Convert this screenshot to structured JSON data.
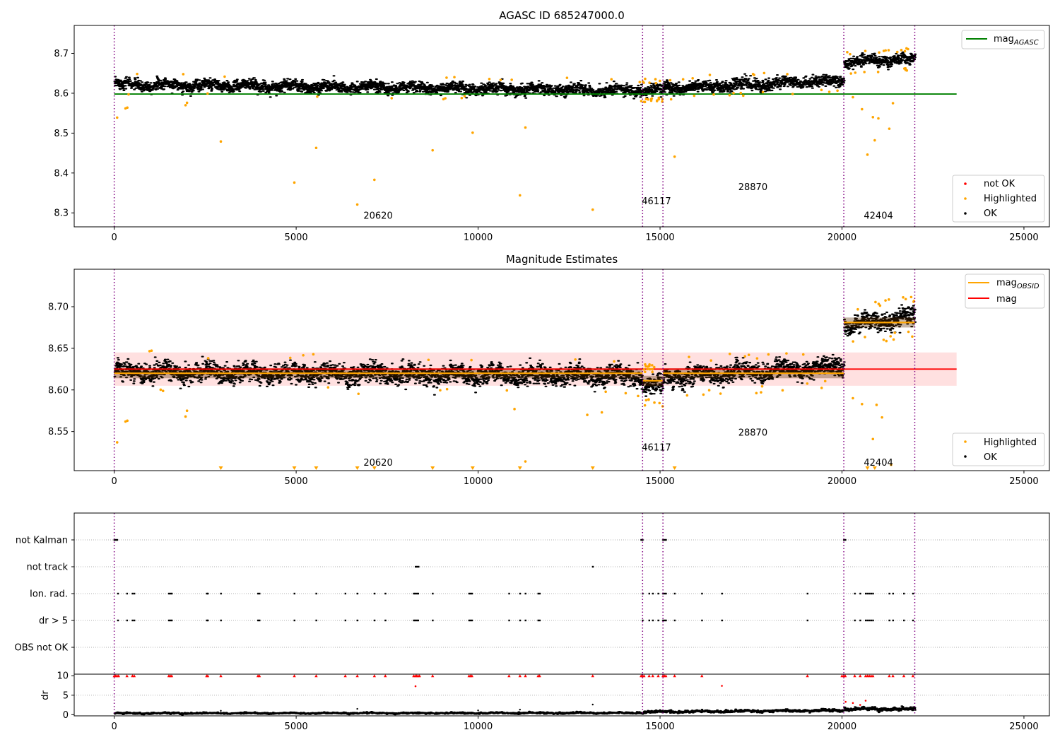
{
  "chart_data": [
    {
      "type": "scatter",
      "title": "AGASC ID 685247000.0",
      "xlim": [
        -1100,
        25700
      ],
      "ylim": [
        8.265,
        8.77
      ],
      "xticks": [
        0,
        5000,
        10000,
        15000,
        20000,
        25000
      ],
      "yticks": [
        8.3,
        8.4,
        8.5,
        8.6,
        8.7
      ],
      "ytick_labels": [
        "8.3",
        "8.4",
        "8.5",
        "8.6",
        "8.7"
      ],
      "obsid_boundaries": [
        0,
        14520,
        15080,
        20050,
        22000
      ],
      "obsid_labels": [
        {
          "text": "20620",
          "x": 6850,
          "y": 8.285
        },
        {
          "text": "46117",
          "x": 14500,
          "y": 8.322
        },
        {
          "text": "28870",
          "x": 17150,
          "y": 8.357
        },
        {
          "text": "42404",
          "x": 20600,
          "y": 8.285
        }
      ],
      "reference_line": {
        "name": "mag",
        "subscript": "AGASC",
        "value": 8.598,
        "x_range": [
          0,
          23150
        ],
        "color": "#008000"
      },
      "segments": [
        {
          "x": [
            0,
            14520
          ],
          "mean_start": 8.622,
          "mean_end": 8.607,
          "spread": 0.012
        },
        {
          "x": [
            14520,
            15080
          ],
          "mean_start": 8.607,
          "mean_end": 8.607,
          "spread": 0.012
        },
        {
          "x": [
            15080,
            20050
          ],
          "mean_start": 8.612,
          "mean_end": 8.632,
          "spread": 0.012
        },
        {
          "x": [
            20050,
            22000
          ],
          "mean_start": 8.678,
          "mean_end": 8.687,
          "spread": 0.012
        }
      ],
      "highlighted_points": [
        [
          80,
          8.539
        ],
        [
          310,
          8.562
        ],
        [
          360,
          8.564
        ],
        [
          1960,
          8.57
        ],
        [
          2000,
          8.576
        ],
        [
          2930,
          8.479
        ],
        [
          4950,
          8.376
        ],
        [
          5550,
          8.463
        ],
        [
          6680,
          8.321
        ],
        [
          7150,
          8.383
        ],
        [
          8750,
          8.457
        ],
        [
          9850,
          8.501
        ],
        [
          11150,
          8.344
        ],
        [
          11300,
          8.514
        ],
        [
          13150,
          8.308
        ],
        [
          15400,
          8.441
        ],
        [
          20300,
          8.59
        ],
        [
          20550,
          8.56
        ],
        [
          20700,
          8.446
        ],
        [
          20850,
          8.54
        ],
        [
          20900,
          8.482
        ],
        [
          21000,
          8.537
        ],
        [
          21300,
          8.511
        ],
        [
          21400,
          8.575
        ]
      ],
      "legends": [
        {
          "position": "upper-right",
          "entries": [
            {
              "label": "mag",
              "subscript": "AGASC",
              "marker": "line",
              "color": "#008000"
            }
          ]
        },
        {
          "position": "lower-right",
          "entries": [
            {
              "label": "not OK",
              "marker": "dot",
              "color": "#ff0000"
            },
            {
              "label": "Highlighted",
              "marker": "dot",
              "color": "#ffa500"
            },
            {
              "label": "OK",
              "marker": "dot",
              "color": "#000000"
            }
          ]
        }
      ]
    },
    {
      "type": "scatter",
      "title": "Magnitude Estimates",
      "xlim": [
        -1100,
        25700
      ],
      "ylim": [
        8.503,
        8.745
      ],
      "xticks": [
        0,
        5000,
        10000,
        15000,
        20000,
        25000
      ],
      "yticks": [
        8.55,
        8.6,
        8.65,
        8.7
      ],
      "ytick_labels": [
        "8.55",
        "8.60",
        "8.65",
        "8.70"
      ],
      "obsid_boundaries": [
        0,
        14520,
        15080,
        20050,
        22000
      ],
      "obsid_labels": [
        {
          "text": "20620",
          "x": 6850,
          "y": 8.509
        },
        {
          "text": "46117",
          "x": 14500,
          "y": 8.527
        },
        {
          "text": "28870",
          "x": 17150,
          "y": 8.545
        },
        {
          "text": "42404",
          "x": 20600,
          "y": 8.509
        }
      ],
      "mag_line": {
        "name": "mag",
        "value": 8.625,
        "band": [
          8.605,
          8.645
        ],
        "x_range": [
          0,
          23150
        ],
        "color": "#ff0000"
      },
      "obsid_mags": [
        {
          "x": [
            0,
            14520
          ],
          "value": 8.62
        },
        {
          "x": [
            14520,
            15080
          ],
          "value": 8.611
        },
        {
          "x": [
            15080,
            20050
          ],
          "value": 8.62
        },
        {
          "x": [
            20050,
            22000
          ],
          "value": 8.681
        }
      ],
      "segments": [
        {
          "x": [
            0,
            14520
          ],
          "mean_start": 8.622,
          "mean_end": 8.616,
          "spread": 0.01
        },
        {
          "x": [
            14520,
            15080
          ],
          "mean_start": 8.605,
          "mean_end": 8.605,
          "spread": 0.01
        },
        {
          "x": [
            15080,
            20050
          ],
          "mean_start": 8.615,
          "mean_end": 8.628,
          "spread": 0.01
        },
        {
          "x": [
            20050,
            22000
          ],
          "mean_start": 8.677,
          "mean_end": 8.688,
          "spread": 0.01
        }
      ],
      "highlighted_points": [
        [
          80,
          8.537
        ],
        [
          310,
          8.562
        ],
        [
          360,
          8.563
        ],
        [
          1960,
          8.568
        ],
        [
          2000,
          8.575
        ],
        [
          13000,
          8.57
        ],
        [
          13400,
          8.573
        ],
        [
          11000,
          8.577
        ],
        [
          20300,
          8.59
        ],
        [
          20550,
          8.583
        ],
        [
          20850,
          8.541
        ],
        [
          20950,
          8.582
        ],
        [
          21100,
          8.567
        ],
        [
          21350,
          8.51
        ],
        [
          11300,
          8.514
        ]
      ],
      "offscale_markers_x": [
        2930,
        4950,
        5550,
        6680,
        7150,
        8750,
        9850,
        11150,
        13150,
        15400,
        20700,
        20900
      ],
      "legends": [
        {
          "position": "upper-right",
          "entries": [
            {
              "label": "mag",
              "subscript": "OBSID",
              "marker": "line",
              "color": "#ffa500"
            },
            {
              "label": "mag",
              "marker": "line",
              "color": "#ff0000"
            }
          ]
        },
        {
          "position": "lower-right",
          "entries": [
            {
              "label": "Highlighted",
              "marker": "dot",
              "color": "#ffa500"
            },
            {
              "label": "OK",
              "marker": "dot",
              "color": "#000000"
            }
          ]
        }
      ]
    },
    {
      "type": "scatter",
      "xlim": [
        -1100,
        25700
      ],
      "xticks": [
        0,
        5000,
        10000,
        15000,
        20000,
        25000
      ],
      "obsid_boundaries": [
        0,
        14520,
        15080,
        20050,
        22000
      ],
      "flag_rows": [
        {
          "label": "not Kalman",
          "x": [
            0,
            40,
            80,
            14480,
            14520,
            15080,
            15120,
            15160,
            20050,
            20090
          ]
        },
        {
          "label": "not track",
          "x": [
            8280,
            8320,
            8360,
            13150
          ]
        },
        {
          "label": "Ion. rad.",
          "x": [
            100,
            350,
            500,
            550,
            1500,
            1540,
            1580,
            2540,
            2570,
            2930,
            3950,
            3990,
            4950,
            5550,
            6350,
            6680,
            7150,
            7450,
            8230,
            8270,
            8310,
            8350,
            8750,
            9750,
            9790,
            9830,
            10850,
            11150,
            11300,
            11650,
            11690,
            14520,
            14700,
            14800,
            14950,
            15080,
            15120,
            15160,
            15400,
            16150,
            16700,
            19050,
            20350,
            20500,
            20650,
            20700,
            20750,
            20800,
            20850,
            21300,
            21400,
            21700,
            21950
          ]
        },
        {
          "label": "dr > 5",
          "x": [
            100,
            350,
            500,
            550,
            1500,
            1540,
            1580,
            2540,
            2570,
            2930,
            3950,
            3990,
            4950,
            5550,
            6350,
            6680,
            7150,
            7450,
            8230,
            8270,
            8310,
            8350,
            8750,
            9750,
            9790,
            9830,
            10850,
            11150,
            11300,
            11650,
            11690,
            14520,
            14700,
            14800,
            14950,
            15080,
            15120,
            15160,
            15400,
            16150,
            16700,
            19050,
            20350,
            20500,
            20650,
            20700,
            20750,
            20800,
            20850,
            21300,
            21400,
            21700,
            21950
          ]
        },
        {
          "label": "OBS not OK",
          "x": []
        }
      ]
    },
    {
      "type": "scatter",
      "ylabel": "dr",
      "xlim": [
        -1100,
        25700
      ],
      "ylim": [
        -0.3,
        10.4
      ],
      "xticks": [
        0,
        5000,
        10000,
        15000,
        20000,
        25000
      ],
      "yticks": [
        0,
        5,
        10
      ],
      "ytick_labels": [
        "0",
        "5",
        "10"
      ],
      "obsid_boundaries": [
        0,
        14520,
        15080,
        20050,
        22000
      ],
      "capped_value": 10,
      "capped_points_x": [
        0,
        40,
        80,
        120,
        350,
        500,
        550,
        1500,
        1540,
        1580,
        2540,
        2570,
        2930,
        3950,
        3990,
        4950,
        5550,
        6350,
        6680,
        7150,
        7450,
        8230,
        8270,
        8310,
        8350,
        8390,
        8750,
        9750,
        9790,
        9830,
        10850,
        11150,
        11300,
        11650,
        11690,
        13150,
        14480,
        14520,
        14560,
        14700,
        14800,
        14950,
        15080,
        15120,
        15160,
        15400,
        16150,
        19050,
        20000,
        20050,
        20090,
        20350,
        20500,
        20650,
        20700,
        20750,
        20800,
        20850,
        21300,
        21400,
        21700,
        21950
      ],
      "red_outliers": [
        [
          8280,
          7.3
        ],
        [
          16700,
          7.4
        ],
        [
          20100,
          3.3
        ],
        [
          20300,
          3.0
        ],
        [
          20650,
          3.6
        ],
        [
          20500,
          2.5
        ]
      ],
      "segments": [
        {
          "x": [
            0,
            14520
          ],
          "mean_start": 0.35,
          "mean_end": 0.45,
          "spread": 0.2
        },
        {
          "x": [
            14520,
            20050
          ],
          "mean_start": 0.7,
          "mean_end": 1.1,
          "spread": 0.3
        },
        {
          "x": [
            20050,
            22000
          ],
          "mean_start": 1.5,
          "mean_end": 1.4,
          "spread": 0.4
        }
      ],
      "black_outliers": [
        [
          6680,
          1.5
        ],
        [
          13150,
          2.6
        ],
        [
          10000,
          1.1
        ],
        [
          2930,
          1.0
        ],
        [
          11150,
          1.3
        ]
      ]
    }
  ]
}
